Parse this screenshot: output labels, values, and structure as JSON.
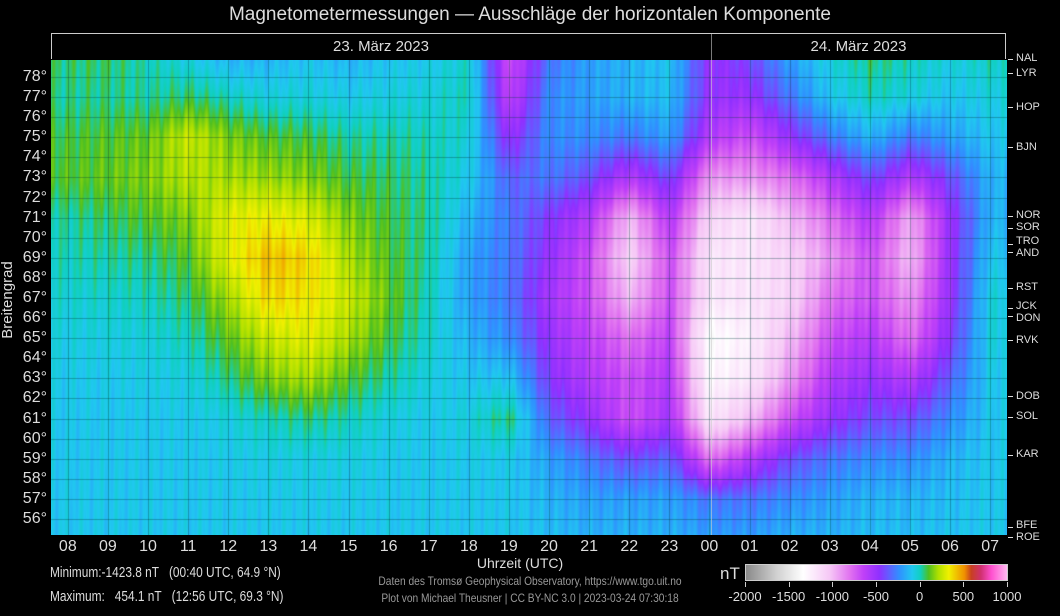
{
  "title": "Magnetometermessungen — Ausschläge der horizontalen Komponente",
  "dates": [
    "23. März 2023",
    "24. März 2023"
  ],
  "stats": {
    "min_label": "Minimum:",
    "min_value": "-1423.8 nT",
    "min_where": "(00:40 UTC, 64.9 °N)",
    "max_label": "Maximum:",
    "max_value": "454.1 nT",
    "max_where": "(12:56 UTC, 69.3 °N)"
  },
  "credits": [
    "Daten des Tromsø Geophysical Observatory, https://www.tgo.uit.no",
    "Plot von Michael Theusner | CC BY-NC 3.0 | 2023-03-24 07:30:18"
  ],
  "chart_data": {
    "type": "heatmap",
    "title": "Magnetometermessungen — Ausschläge der horizontalen Komponente",
    "xlabel": "Uhrzeit (UTC)",
    "ylabel": "Breitengrad",
    "xlim_hours": [
      7.58,
      31.42
    ],
    "ylim": [
      55.2,
      78.85
    ],
    "x_ticks": [
      "08",
      "09",
      "10",
      "11",
      "12",
      "13",
      "14",
      "15",
      "16",
      "17",
      "18",
      "19",
      "20",
      "21",
      "22",
      "23",
      "00",
      "01",
      "02",
      "03",
      "04",
      "05",
      "06",
      "07"
    ],
    "y_ticks": [
      "78°",
      "77°",
      "76°",
      "75°",
      "74°",
      "73°",
      "72°",
      "71°",
      "70°",
      "69°",
      "68°",
      "67°",
      "66°",
      "65°",
      "64°",
      "63°",
      "62°",
      "61°",
      "60°",
      "59°",
      "58°",
      "57°",
      "56°"
    ],
    "colorbar": {
      "unit": "nT",
      "range": [
        -2000,
        1000
      ],
      "tick_labels": [
        "-2000",
        "-1500",
        "-1000",
        "-500",
        "0",
        "500",
        "1000"
      ],
      "stops": [
        [
          -2000,
          "#8a8a8a"
        ],
        [
          -1650,
          "#d0d0d0"
        ],
        [
          -1340,
          "#ffffff"
        ],
        [
          -1040,
          "#f6c8f6"
        ],
        [
          -800,
          "#e070f0"
        ],
        [
          -650,
          "#c040f8"
        ],
        [
          -470,
          "#9030ff"
        ],
        [
          -240,
          "#3090ff"
        ],
        [
          -90,
          "#20c8f0"
        ],
        [
          5,
          "#10d0c0"
        ],
        [
          100,
          "#50c020"
        ],
        [
          210,
          "#b0e000"
        ],
        [
          330,
          "#f0f000"
        ],
        [
          510,
          "#f09000"
        ],
        [
          590,
          "#c84020"
        ],
        [
          700,
          "#d03070"
        ],
        [
          820,
          "#ff50d0"
        ],
        [
          1000,
          "#ffb8f0"
        ]
      ]
    },
    "stations": [
      {
        "code": "NAL",
        "lat": 78.9
      },
      {
        "code": "LYR",
        "lat": 78.2
      },
      {
        "code": "HOP",
        "lat": 76.5
      },
      {
        "code": "BJN",
        "lat": 74.5
      },
      {
        "code": "NOR",
        "lat": 71.1
      },
      {
        "code": "SOR",
        "lat": 70.5
      },
      {
        "code": "TRO",
        "lat": 69.7
      },
      {
        "code": "AND",
        "lat": 69.3
      },
      {
        "code": "RST",
        "lat": 67.5
      },
      {
        "code": "JCK",
        "lat": 66.5
      },
      {
        "code": "DON",
        "lat": 66.1
      },
      {
        "code": "RVK",
        "lat": 64.9
      },
      {
        "code": "DOB",
        "lat": 62.1
      },
      {
        "code": "SOL",
        "lat": 61.1
      },
      {
        "code": "KAR",
        "lat": 59.2
      },
      {
        "code": "BFE",
        "lat": 55.6
      },
      {
        "code": "ROE",
        "lat": 55.1
      }
    ],
    "grid_lats": [
      79,
      77,
      75,
      73,
      71,
      69,
      67,
      65,
      63,
      61,
      59,
      57,
      55
    ],
    "grid_hours": [
      8,
      9,
      10,
      11,
      12,
      13,
      14,
      15,
      16,
      17,
      18,
      19,
      20,
      21,
      22,
      23,
      24,
      25,
      26,
      27,
      28,
      29,
      30,
      31
    ],
    "values_by_hour": [
      [
        50,
        30,
        80,
        100,
        20,
        0,
        -30,
        -60,
        -80,
        -90,
        -90,
        -90,
        -90
      ],
      [
        60,
        40,
        100,
        120,
        60,
        20,
        -20,
        -50,
        -80,
        -90,
        -90,
        -90,
        -90
      ],
      [
        0,
        20,
        120,
        150,
        100,
        40,
        0,
        -40,
        -70,
        -90,
        -90,
        -90,
        -90
      ],
      [
        -60,
        60,
        250,
        220,
        150,
        100,
        50,
        0,
        -50,
        -80,
        -90,
        -90,
        -90
      ],
      [
        -150,
        0,
        150,
        200,
        300,
        300,
        200,
        120,
        40,
        -50,
        -80,
        -90,
        -90
      ],
      [
        -150,
        -50,
        100,
        180,
        330,
        430,
        380,
        250,
        150,
        0,
        -60,
        -80,
        -90
      ],
      [
        -100,
        -40,
        80,
        150,
        280,
        380,
        350,
        300,
        200,
        40,
        -60,
        -80,
        -90
      ],
      [
        -150,
        -80,
        20,
        80,
        150,
        200,
        250,
        200,
        100,
        0,
        -60,
        -80,
        -90
      ],
      [
        -100,
        -50,
        20,
        60,
        80,
        100,
        120,
        80,
        20,
        -50,
        -80,
        -90,
        -90
      ],
      [
        -80,
        -40,
        0,
        20,
        30,
        20,
        0,
        -20,
        -50,
        -80,
        -90,
        -90,
        -90
      ],
      [
        -20,
        0,
        -40,
        -80,
        -150,
        -200,
        -200,
        -150,
        -100,
        -50,
        -80,
        -90,
        -90
      ],
      [
        -700,
        -650,
        -500,
        -350,
        -300,
        -300,
        -300,
        -250,
        -100,
        50,
        -80,
        -90,
        -90
      ],
      [
        -300,
        -250,
        -250,
        -300,
        -450,
        -500,
        -550,
        -500,
        -450,
        -350,
        -200,
        -150,
        -120
      ],
      [
        -200,
        -200,
        -250,
        -400,
        -600,
        -700,
        -700,
        -650,
        -600,
        -500,
        -300,
        -200,
        -150
      ],
      [
        -150,
        -150,
        -300,
        -600,
        -1000,
        -1100,
        -1000,
        -800,
        -700,
        -700,
        -400,
        -200,
        -150
      ],
      [
        -100,
        -120,
        -200,
        -400,
        -600,
        -700,
        -700,
        -650,
        -600,
        -550,
        -350,
        -200,
        -150
      ],
      [
        -500,
        -500,
        -600,
        -900,
        -1100,
        -1200,
        -1200,
        -1350,
        -1300,
        -1200,
        -800,
        -300,
        -200
      ],
      [
        -400,
        -500,
        -700,
        -900,
        -1200,
        -1200,
        -1200,
        -1250,
        -1200,
        -1000,
        -600,
        -300,
        -200
      ],
      [
        -200,
        -300,
        -500,
        -800,
        -1000,
        -1100,
        -1100,
        -1000,
        -900,
        -700,
        -400,
        -250,
        -150
      ],
      [
        -50,
        -100,
        -300,
        -600,
        -800,
        -900,
        -800,
        -700,
        -600,
        -500,
        -300,
        -200,
        -150
      ],
      [
        50,
        0,
        -150,
        -400,
        -600,
        -700,
        -700,
        -600,
        -500,
        -400,
        -250,
        -150,
        -120
      ],
      [
        0,
        -50,
        -300,
        -600,
        -950,
        -1000,
        -900,
        -800,
        -600,
        -400,
        -250,
        -150,
        -120
      ],
      [
        -50,
        -100,
        -200,
        -400,
        -500,
        -500,
        -500,
        -450,
        -350,
        -250,
        -150,
        -120,
        -100
      ],
      [
        0,
        -50,
        -100,
        -150,
        -150,
        -100,
        -50,
        -50,
        -80,
        -90,
        -90,
        -90,
        -90
      ]
    ]
  }
}
